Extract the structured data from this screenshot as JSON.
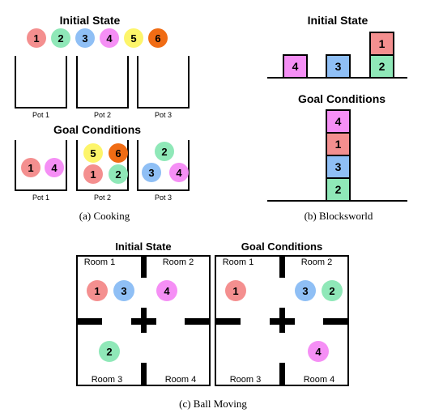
{
  "colors": {
    "ball": {
      "1": "#f48f8f",
      "2": "#8fe8b8",
      "3": "#8fbff5",
      "4": "#f58ff5",
      "5": "#fdf56a",
      "6": "#f06c14"
    },
    "stroke": "#000000"
  },
  "cooking": {
    "initial_title": "Initial State",
    "goal_title": "Goal Conditions",
    "initial_balls": [
      "1",
      "2",
      "3",
      "4",
      "5",
      "6"
    ],
    "initial_pots": [
      {
        "label": "Pot 1",
        "balls": []
      },
      {
        "label": "Pot 2",
        "balls": []
      },
      {
        "label": "Pot 3",
        "balls": []
      }
    ],
    "goal_pots": [
      {
        "label": "Pot 1",
        "balls": [
          "1",
          "4"
        ]
      },
      {
        "label": "Pot 2",
        "balls": [
          "5",
          "6",
          "1",
          "2"
        ]
      },
      {
        "label": "Pot 3",
        "balls": [
          "2",
          "3",
          "4"
        ]
      }
    ],
    "caption": "(a) Cooking"
  },
  "blocksworld": {
    "initial_title": "Initial State",
    "goal_title": "Goal Conditions",
    "initial_stacks": [
      [
        "4"
      ],
      [
        "3"
      ],
      [
        "2",
        "1"
      ]
    ],
    "goal_stack": [
      "2",
      "3",
      "1",
      "4"
    ],
    "caption": "(b) Blocksworld"
  },
  "ball_moving": {
    "initial_title": "Initial State",
    "goal_title": "Goal Conditions",
    "room_labels": [
      "Room 1",
      "Room 2",
      "Room 3",
      "Room 4"
    ],
    "initial": {
      "room1": [
        "1",
        "3"
      ],
      "room2": [
        "4"
      ],
      "room3": [
        "2"
      ],
      "room4": []
    },
    "goal": {
      "room1": [
        "1"
      ],
      "room2": [
        "3",
        "2"
      ],
      "room3": [],
      "room4": [
        "4"
      ]
    },
    "caption": "(c) Ball Moving"
  }
}
